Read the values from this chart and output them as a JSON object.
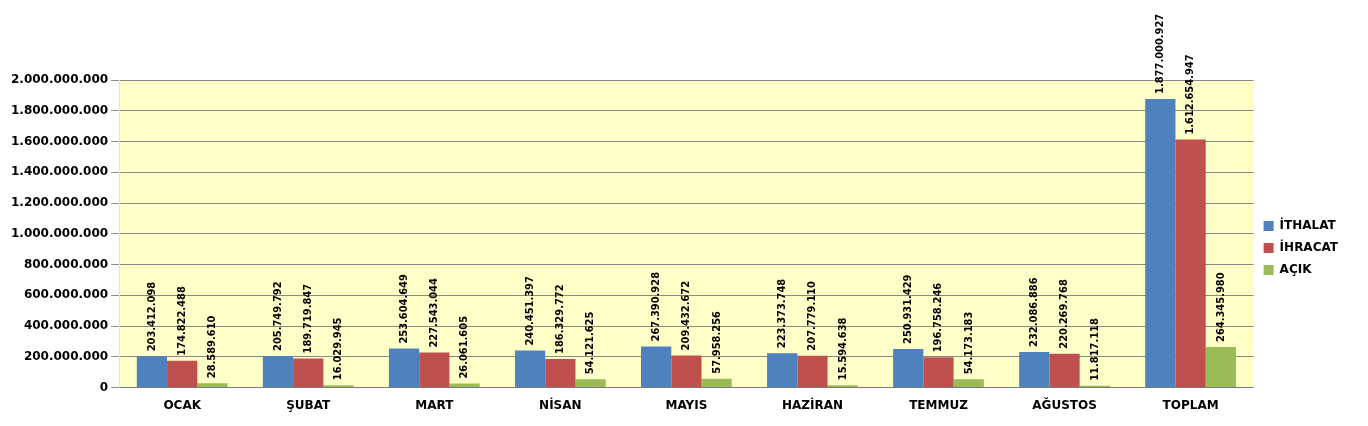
{
  "chart_data": {
    "type": "bar",
    "categories": [
      "OCAK",
      "ŞUBAT",
      "MART",
      "NİSAN",
      "MAYIS",
      "HAZİRAN",
      "TEMMUZ",
      "AĞUSTOS",
      "TOPLAM"
    ],
    "series": [
      {
        "name": "İTHALAT",
        "color": "#4f81bd",
        "values": [
          203412098,
          205749792,
          253604649,
          240451397,
          267390928,
          223373748,
          250931429,
          232086886,
          1877000927
        ],
        "value_labels": [
          "203.412.098",
          "205.749.792",
          "253.604.649",
          "240.451.397",
          "267.390.928",
          "223.373.748",
          "250.931.429",
          "232.086.886",
          "1.877.000.927"
        ]
      },
      {
        "name": "İHRACAT",
        "color": "#c0504d",
        "values": [
          174822488,
          189719847,
          227543044,
          186329772,
          209432672,
          207779110,
          196758246,
          220269768,
          1612654947
        ],
        "value_labels": [
          "174.822.488",
          "189.719.847",
          "227.543.044",
          "186.329.772",
          "209.432.672",
          "207.779.110",
          "196.758.246",
          "220.269.768",
          "1.612.654.947"
        ]
      },
      {
        "name": "AÇIK",
        "color": "#9bbb59",
        "values": [
          28589610,
          16029945,
          26061605,
          54121625,
          57958256,
          15594638,
          54173183,
          11817118,
          264345980
        ],
        "value_labels": [
          "28.589.610",
          "16.029.945",
          "26.061.605",
          "54.121.625",
          "57.958.256",
          "15.594.638",
          "54.173.183",
          "11.817.118",
          "264.345.980"
        ]
      }
    ],
    "ylim": [
      0,
      2000000000
    ],
    "yticks": [
      {
        "value": 0,
        "label": "0"
      },
      {
        "value": 200000000,
        "label": "200.000.000"
      },
      {
        "value": 400000000,
        "label": "400.000.000"
      },
      {
        "value": 600000000,
        "label": "600.000.000"
      },
      {
        "value": 800000000,
        "label": "800.000.000"
      },
      {
        "value": 1000000000,
        "label": "1.000.000.000"
      },
      {
        "value": 1200000000,
        "label": "1.200.000.000"
      },
      {
        "value": 1400000000,
        "label": "1.400.000.000"
      },
      {
        "value": 1600000000,
        "label": "1.600.000.000"
      },
      {
        "value": 1800000000,
        "label": "1.800.000.000"
      },
      {
        "value": 2000000000,
        "label": "2.000.000.000"
      }
    ],
    "grid": "y",
    "legend": "right"
  }
}
